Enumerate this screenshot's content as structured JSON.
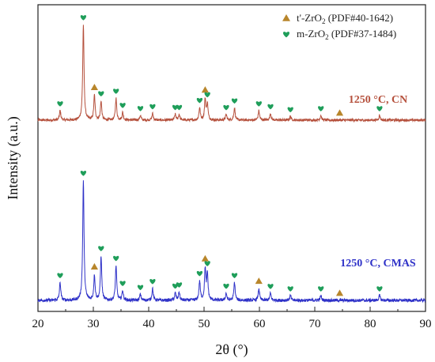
{
  "chart_data": {
    "type": "line",
    "xlabel": "2θ (°)",
    "ylabel": "Intensity (a.u.)",
    "xlim": [
      20,
      90
    ],
    "xticks": [
      20,
      30,
      40,
      50,
      60,
      70,
      80,
      90
    ],
    "grid": false,
    "legend_position": "top-right",
    "legend": [
      {
        "marker": "triangle",
        "color": "#b8862b",
        "base": "t'-ZrO",
        "sub": "2",
        "ref": " (PDF#40-1642)"
      },
      {
        "marker": "heart",
        "color": "#1f9e5a",
        "base": "m-ZrO",
        "sub": "2",
        "ref": " (PDF#37-1484)"
      }
    ],
    "baseline_intensity": 4,
    "peak_width": 0.14,
    "series": [
      {
        "name": "1250 °C, CN",
        "color": "#b5503c",
        "peaks": [
          [
            24.0,
            10
          ],
          [
            28.2,
            100
          ],
          [
            30.2,
            26
          ],
          [
            31.4,
            20
          ],
          [
            34.1,
            23
          ],
          [
            35.3,
            8
          ],
          [
            38.5,
            5
          ],
          [
            40.7,
            7
          ],
          [
            44.8,
            6
          ],
          [
            45.5,
            6
          ],
          [
            49.2,
            13
          ],
          [
            50.2,
            22
          ],
          [
            50.6,
            17
          ],
          [
            54.0,
            6
          ],
          [
            55.5,
            13
          ],
          [
            59.9,
            10
          ],
          [
            62.0,
            7
          ],
          [
            65.6,
            4
          ],
          [
            71.1,
            5
          ],
          [
            81.7,
            5
          ]
        ],
        "markers": [
          {
            "x": 24.0,
            "type": "m"
          },
          {
            "x": 28.2,
            "type": "m"
          },
          {
            "x": 30.2,
            "type": "t"
          },
          {
            "x": 31.4,
            "type": "m"
          },
          {
            "x": 34.1,
            "type": "m"
          },
          {
            "x": 35.3,
            "type": "m"
          },
          {
            "x": 38.5,
            "type": "m"
          },
          {
            "x": 40.7,
            "type": "m"
          },
          {
            "x": 44.8,
            "type": "m"
          },
          {
            "x": 45.5,
            "type": "m"
          },
          {
            "x": 49.2,
            "type": "m"
          },
          {
            "x": 50.2,
            "type": "t"
          },
          {
            "x": 50.6,
            "type": "m"
          },
          {
            "x": 54.0,
            "type": "m"
          },
          {
            "x": 55.5,
            "type": "m"
          },
          {
            "x": 59.9,
            "type": "m"
          },
          {
            "x": 62.0,
            "type": "m"
          },
          {
            "x": 65.6,
            "type": "m"
          },
          {
            "x": 71.1,
            "type": "m"
          },
          {
            "x": 74.5,
            "type": "t"
          },
          {
            "x": 81.7,
            "type": "m"
          }
        ]
      },
      {
        "name": "1250 °C, CMAS",
        "color": "#2f32c8",
        "peaks": [
          [
            24.0,
            15
          ],
          [
            28.2,
            100
          ],
          [
            30.2,
            21
          ],
          [
            31.4,
            37
          ],
          [
            34.1,
            29
          ],
          [
            35.3,
            8
          ],
          [
            38.5,
            5
          ],
          [
            40.7,
            10
          ],
          [
            44.8,
            6
          ],
          [
            45.5,
            7
          ],
          [
            49.2,
            16
          ],
          [
            50.2,
            26
          ],
          [
            50.6,
            22
          ],
          [
            54.0,
            6
          ],
          [
            55.5,
            15
          ],
          [
            59.9,
            10
          ],
          [
            62.0,
            6
          ],
          [
            65.6,
            4
          ],
          [
            71.1,
            4
          ],
          [
            81.7,
            4
          ]
        ],
        "markers": [
          {
            "x": 24.0,
            "type": "m"
          },
          {
            "x": 28.2,
            "type": "m"
          },
          {
            "x": 30.2,
            "type": "t"
          },
          {
            "x": 31.4,
            "type": "m"
          },
          {
            "x": 34.1,
            "type": "m"
          },
          {
            "x": 35.3,
            "type": "m"
          },
          {
            "x": 38.5,
            "type": "m"
          },
          {
            "x": 40.7,
            "type": "m"
          },
          {
            "x": 44.8,
            "type": "m"
          },
          {
            "x": 45.5,
            "type": "m"
          },
          {
            "x": 49.2,
            "type": "m"
          },
          {
            "x": 50.2,
            "type": "t"
          },
          {
            "x": 50.6,
            "type": "m"
          },
          {
            "x": 54.0,
            "type": "m"
          },
          {
            "x": 55.5,
            "type": "m"
          },
          {
            "x": 59.9,
            "type": "t"
          },
          {
            "x": 62.0,
            "type": "m"
          },
          {
            "x": 65.6,
            "type": "m"
          },
          {
            "x": 71.1,
            "type": "m"
          },
          {
            "x": 74.5,
            "type": "t"
          },
          {
            "x": 81.7,
            "type": "m"
          }
        ]
      }
    ]
  }
}
